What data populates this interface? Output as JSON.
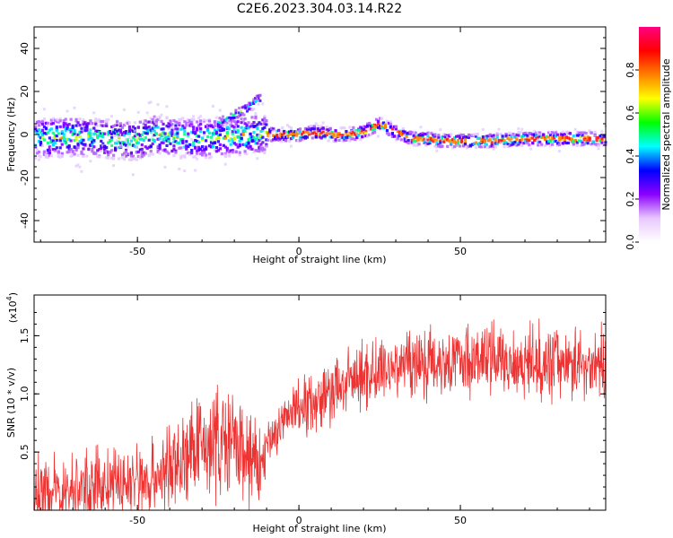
{
  "figure": {
    "title": "C2E6.2023.304.03.14.R22"
  },
  "chart_data": [
    {
      "type": "heatmap",
      "name": "spectrogram",
      "xlabel": "Height of straight line (km)",
      "ylabel": "Frequency (Hz)",
      "xlim": [
        -82,
        95
      ],
      "ylim": [
        -50,
        50
      ],
      "xticks": [
        -50,
        0,
        50
      ],
      "yticks": [
        -40,
        -20,
        0,
        20,
        40
      ],
      "colorbar": {
        "label": "Normalized spectral amplitude",
        "range": [
          0,
          1
        ],
        "ticks": [
          "0.0",
          "0.2",
          "0.4",
          "0.6",
          "0.8"
        ],
        "colors": [
          "#ffffff",
          "#e8c8ff",
          "#8b00ff",
          "#0000ff",
          "#00ffff",
          "#00ff00",
          "#ffff00",
          "#ff8000",
          "#ff0000",
          "#ff0080"
        ]
      },
      "track": {
        "x": [
          -82,
          -70,
          -60,
          -50,
          -45,
          -40,
          -30,
          -20,
          -15,
          -10,
          -5,
          0,
          5,
          10,
          15,
          20,
          25,
          30,
          35,
          40,
          45,
          50,
          60,
          70,
          80,
          90,
          95
        ],
        "y": [
          -2,
          -1,
          -2,
          -3,
          0,
          -1,
          -2,
          -1,
          0,
          0,
          0,
          0,
          1,
          0,
          0,
          1,
          5,
          1,
          -2,
          -2,
          -3,
          -3,
          -3,
          -2,
          -2,
          -2,
          -2
        ]
      },
      "side_band": {
        "x": [
          -25,
          -20,
          -15,
          -12
        ],
        "y": [
          5,
          9,
          13,
          17
        ]
      }
    },
    {
      "type": "line",
      "name": "snr",
      "xlabel": "Height of straight line (km)",
      "ylabel": "SNR (10 * v/v)",
      "multiplier": "(x10",
      "multiplier_exp": "4",
      "multiplier_close": ")",
      "xlim": [
        -82,
        95
      ],
      "ylim": [
        0,
        1.85
      ],
      "xticks": [
        -50,
        0,
        50
      ],
      "yticks": [
        0.5,
        1.0,
        1.5
      ],
      "ytick_labels": [
        "0.5",
        "1.0",
        "1.5"
      ],
      "color": "#ee3333",
      "series": {
        "x": [
          -82,
          -75,
          -65,
          -55,
          -45,
          -40,
          -35,
          -30,
          -25,
          -20,
          -15,
          -12,
          -10,
          -5,
          0,
          5,
          10,
          15,
          20,
          25,
          30,
          35,
          40,
          50,
          60,
          70,
          80,
          90,
          95
        ],
        "y": [
          0.15,
          0.15,
          0.2,
          0.22,
          0.28,
          0.35,
          0.45,
          0.55,
          0.6,
          0.55,
          0.45,
          0.35,
          0.55,
          0.75,
          0.9,
          0.95,
          1.0,
          1.1,
          1.15,
          1.2,
          1.25,
          1.28,
          1.28,
          1.3,
          1.3,
          1.28,
          1.28,
          1.25,
          1.25
        ]
      }
    }
  ]
}
